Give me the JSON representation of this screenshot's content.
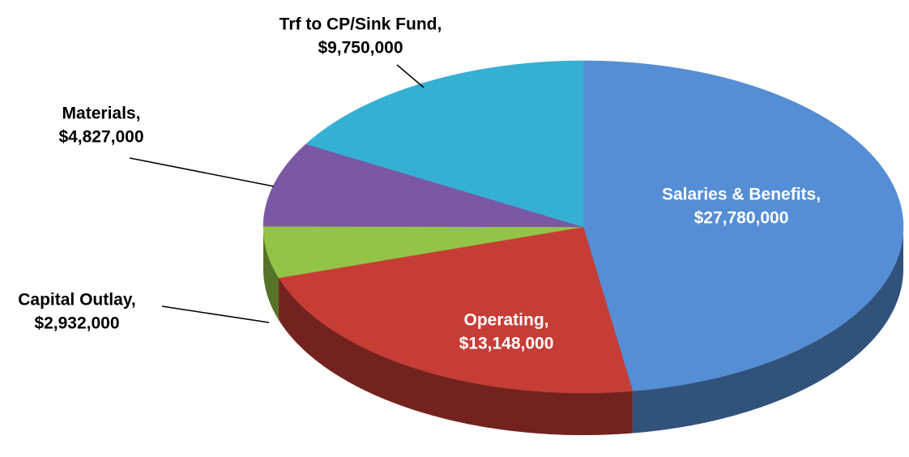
{
  "chart_data": {
    "type": "pie",
    "categories": [
      "Salaries & Benefits,",
      "Operating,",
      "Capital Outlay,",
      "Materials,",
      "Trf to CP/Sink Fund,"
    ],
    "values": [
      27780000,
      13148000,
      2932000,
      4827000,
      9750000
    ],
    "value_labels": [
      "$27,780,000",
      "$13,148,000",
      "$2,932,000",
      "$4,827,000",
      "$9,750,000"
    ],
    "colors": [
      "#558ed5",
      "#c63d36",
      "#94c447",
      "#7a58a4",
      "#35afd2"
    ]
  }
}
